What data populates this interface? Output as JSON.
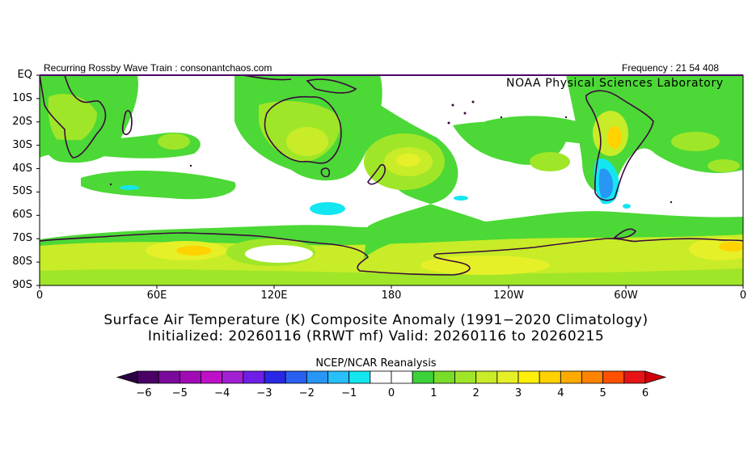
{
  "header": {
    "left_text": "Recurring Rossby Wave Train : consonantchaos.com",
    "right_text": "Frequency : 21 54 408",
    "credit": "NOAA Physical Sciences Laboratory"
  },
  "axes": {
    "lat_labels": [
      "EQ",
      "10S",
      "20S",
      "30S",
      "40S",
      "50S",
      "60S",
      "70S",
      "80S",
      "90S"
    ],
    "lon_labels": [
      "0",
      "60E",
      "120E",
      "180",
      "120W",
      "60W",
      "0"
    ]
  },
  "titles": {
    "line1": "Surface Air Temperature (K) Composite Anomaly (1991−2020 Climatology)",
    "line2": "Initialized: 20260116 (RRWT mf) Valid: 20260116 to 20260215"
  },
  "colorbar": {
    "title": "NCEP/NCAR Reanalysis",
    "tick_labels": [
      "−6",
      "−5",
      "−4",
      "−3",
      "−2",
      "−1",
      "0",
      "1",
      "2",
      "3",
      "4",
      "5",
      "6"
    ],
    "colors": [
      "#4b0066",
      "#7a0a9a",
      "#a00ab4",
      "#be10c8",
      "#a020d2",
      "#6e1ee6",
      "#2828e6",
      "#2860f0",
      "#2896f5",
      "#28c0fa",
      "#14e6f0",
      "#ffffff",
      "#ffffff",
      "#3cd23c",
      "#78dc28",
      "#a0e628",
      "#c8ec28",
      "#e6f028",
      "#fff00a",
      "#ffd200",
      "#ffaa00",
      "#ff8200",
      "#ff5000",
      "#e61414"
    ],
    "left_arrow_color": "#2d0044",
    "right_arrow_color": "#d2000a"
  },
  "map": {
    "land_color": "#000000",
    "coast_color": "#3a0a3a",
    "anomaly_colors": {
      "light_green": "#4cd836",
      "green_yellow": "#a0e628",
      "yellow_green": "#c8ec28",
      "yellow": "#e6f028",
      "orange": "#ffd200",
      "cyan": "#14e6f0",
      "blue": "#28c0fa",
      "dark_blue": "#2896f5"
    }
  }
}
